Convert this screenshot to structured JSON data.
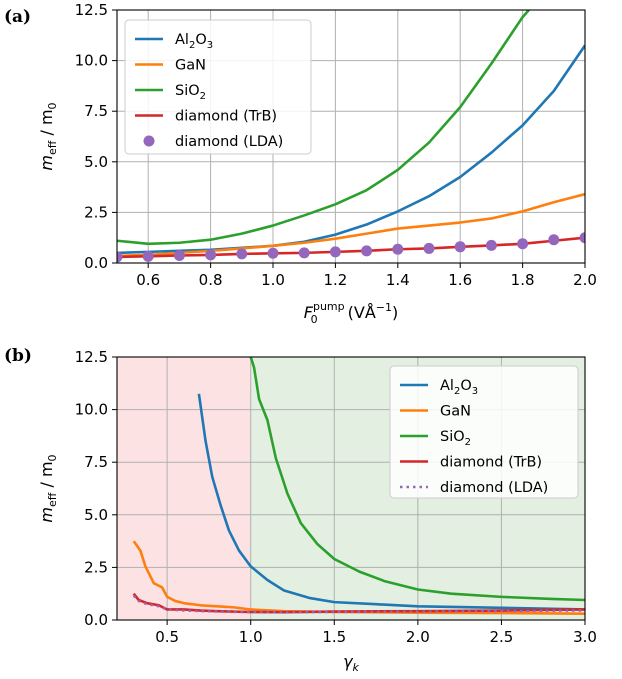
{
  "colors": {
    "Al2O3": "#1f77b4",
    "GaN": "#ff7f0e",
    "SiO2": "#2ca02c",
    "diamond_TrB": "#d62728",
    "diamond_LDA": "#9467bd",
    "region_left": "#fde2e4",
    "region_right": "#e3efe0"
  },
  "chart_data": [
    {
      "panel_label": "(a)",
      "type": "line",
      "xlabel": "F",
      "xlabel_sub": "0",
      "xlabel_sup": "pump",
      "xlabel_units": "(VÅ",
      "xlabel_units_sup": "−1",
      "xlabel_units_close": ")",
      "ylabel": "m",
      "ylabel_sub": "eff",
      "ylabel_tail": " / m",
      "ylabel_tail_sub": "0",
      "xlim": [
        0.5,
        2.0
      ],
      "ylim": [
        0,
        12.5
      ],
      "xticks": [
        0.6,
        0.8,
        1.0,
        1.2,
        1.4,
        1.6,
        1.8,
        2.0
      ],
      "xtick_labels": [
        "0.6",
        "0.8",
        "1.0",
        "1.2",
        "1.4",
        "1.6",
        "1.8",
        "2.0"
      ],
      "yticks": [
        0,
        2.5,
        5.0,
        7.5,
        10.0,
        12.5
      ],
      "ytick_labels": [
        "0.0",
        "2.5",
        "5.0",
        "7.5",
        "10.0",
        "12.5"
      ],
      "grid": true,
      "legend_position": "top-left",
      "series": [
        {
          "key": "Al2O3",
          "label_main": "Al",
          "label_sub1": "2",
          "label_mid": "O",
          "label_sub2": "3",
          "style": "line",
          "x": [
            0.5,
            0.6,
            0.7,
            0.8,
            0.9,
            1.0,
            1.1,
            1.2,
            1.3,
            1.4,
            1.5,
            1.6,
            1.7,
            1.8,
            1.9,
            2.0
          ],
          "y": [
            0.5,
            0.55,
            0.6,
            0.65,
            0.75,
            0.85,
            1.05,
            1.4,
            1.9,
            2.55,
            3.3,
            4.25,
            5.45,
            6.8,
            8.5,
            10.75
          ]
        },
        {
          "key": "GaN",
          "label_main": "GaN",
          "style": "line",
          "x": [
            0.5,
            0.6,
            0.7,
            0.8,
            0.9,
            1.0,
            1.1,
            1.2,
            1.3,
            1.4,
            1.5,
            1.6,
            1.7,
            1.8,
            1.9,
            2.0
          ],
          "y": [
            0.35,
            0.4,
            0.5,
            0.6,
            0.72,
            0.85,
            1.0,
            1.2,
            1.45,
            1.7,
            1.85,
            2.0,
            2.2,
            2.55,
            3.0,
            3.4
          ]
        },
        {
          "key": "SiO2",
          "label_main": "SiO",
          "label_sub1": "2",
          "style": "line",
          "x": [
            0.5,
            0.6,
            0.7,
            0.8,
            0.9,
            1.0,
            1.1,
            1.2,
            1.3,
            1.4,
            1.5,
            1.6,
            1.7,
            1.8,
            1.82
          ],
          "y": [
            1.1,
            0.95,
            1.0,
            1.15,
            1.45,
            1.85,
            2.35,
            2.9,
            3.6,
            4.6,
            5.95,
            7.7,
            9.85,
            12.15,
            12.5
          ]
        },
        {
          "key": "diamond_TrB",
          "label_main": "diamond (TrB)",
          "style": "line",
          "x": [
            0.5,
            0.6,
            0.7,
            0.8,
            0.9,
            1.0,
            1.1,
            1.2,
            1.3,
            1.4,
            1.5,
            1.6,
            1.7,
            1.8,
            1.9,
            2.0
          ],
          "y": [
            0.3,
            0.33,
            0.37,
            0.4,
            0.45,
            0.48,
            0.5,
            0.55,
            0.6,
            0.68,
            0.72,
            0.8,
            0.87,
            0.95,
            1.1,
            1.25
          ]
        },
        {
          "key": "diamond_LDA",
          "label_main": "diamond (LDA)",
          "style": "markers",
          "x": [
            0.5,
            0.6,
            0.7,
            0.8,
            0.9,
            1.0,
            1.1,
            1.2,
            1.3,
            1.4,
            1.5,
            1.6,
            1.7,
            1.8,
            1.9,
            2.0
          ],
          "y": [
            0.3,
            0.33,
            0.37,
            0.4,
            0.45,
            0.48,
            0.5,
            0.55,
            0.6,
            0.68,
            0.72,
            0.8,
            0.87,
            0.95,
            1.15,
            1.25
          ]
        }
      ]
    },
    {
      "panel_label": "(b)",
      "type": "line",
      "xlabel": "γ",
      "xlabel_sub": "k",
      "ylabel": "m",
      "ylabel_sub": "eff",
      "ylabel_tail": " / m",
      "ylabel_tail_sub": "0",
      "xlim": [
        0.2,
        3.0
      ],
      "ylim": [
        0,
        12.5
      ],
      "xticks": [
        0.5,
        1.0,
        1.5,
        2.0,
        2.5,
        3.0
      ],
      "xtick_labels": [
        "0.5",
        "1.0",
        "1.5",
        "2.0",
        "2.5",
        "3.0"
      ],
      "yticks": [
        0,
        2.5,
        5.0,
        7.5,
        10.0,
        12.5
      ],
      "ytick_labels": [
        "0.0",
        "2.5",
        "5.0",
        "7.5",
        "10.0",
        "12.5"
      ],
      "grid": true,
      "legend_position": "top-right",
      "shaded_regions": [
        {
          "x0": 0.2,
          "x1": 1.0,
          "color_key": "region_left"
        },
        {
          "x0": 1.0,
          "x1": 3.0,
          "color_key": "region_right"
        }
      ],
      "series": [
        {
          "key": "Al2O3",
          "label_main": "Al",
          "label_sub1": "2",
          "label_mid": "O",
          "label_sub2": "3",
          "style": "line",
          "x": [
            0.69,
            0.73,
            0.77,
            0.82,
            0.87,
            0.93,
            1.0,
            1.1,
            1.2,
            1.35,
            1.5,
            1.75,
            2.0,
            2.5,
            3.0
          ],
          "y": [
            10.75,
            8.5,
            6.8,
            5.45,
            4.25,
            3.3,
            2.55,
            1.9,
            1.4,
            1.05,
            0.85,
            0.75,
            0.65,
            0.58,
            0.5
          ]
        },
        {
          "key": "GaN",
          "label_main": "GaN",
          "style": "line",
          "x": [
            0.3,
            0.34,
            0.37,
            0.42,
            0.47,
            0.5,
            0.55,
            0.6,
            0.7,
            0.8,
            0.9,
            1.0,
            1.2,
            1.5,
            2.0,
            2.5,
            3.0
          ],
          "y": [
            3.75,
            3.3,
            2.55,
            1.75,
            1.55,
            1.1,
            0.9,
            0.8,
            0.7,
            0.65,
            0.6,
            0.5,
            0.42,
            0.38,
            0.35,
            0.33,
            0.3
          ]
        },
        {
          "key": "SiO2",
          "label_main": "SiO",
          "label_sub1": "2",
          "style": "line",
          "x": [
            1.0,
            1.02,
            1.05,
            1.1,
            1.15,
            1.22,
            1.3,
            1.4,
            1.5,
            1.65,
            1.8,
            2.0,
            2.2,
            2.5,
            2.8,
            3.0
          ],
          "y": [
            12.5,
            12.0,
            10.5,
            9.5,
            7.7,
            6.0,
            4.6,
            3.6,
            2.9,
            2.3,
            1.85,
            1.45,
            1.25,
            1.1,
            1.0,
            0.95
          ]
        },
        {
          "key": "diamond_TrB",
          "label_main": "diamond (TrB)",
          "style": "line",
          "x": [
            0.3,
            0.33,
            0.38,
            0.45,
            0.5,
            0.6,
            0.7,
            0.8,
            1.0,
            1.2,
            1.5,
            2.0,
            2.5,
            3.0
          ],
          "y": [
            1.25,
            0.95,
            0.8,
            0.7,
            0.5,
            0.5,
            0.45,
            0.42,
            0.38,
            0.37,
            0.4,
            0.42,
            0.45,
            0.5
          ]
        },
        {
          "key": "diamond_LDA",
          "label_main": "diamond (LDA)",
          "style": "dotted",
          "x": [
            0.3,
            0.33,
            0.38,
            0.45,
            0.5,
            0.6,
            0.7,
            0.8,
            1.0,
            1.2,
            1.5,
            2.0,
            2.5,
            3.0
          ],
          "y": [
            1.15,
            0.9,
            0.75,
            0.65,
            0.5,
            0.45,
            0.42,
            0.4,
            0.37,
            0.36,
            0.38,
            0.4,
            0.42,
            0.45
          ]
        }
      ]
    }
  ]
}
